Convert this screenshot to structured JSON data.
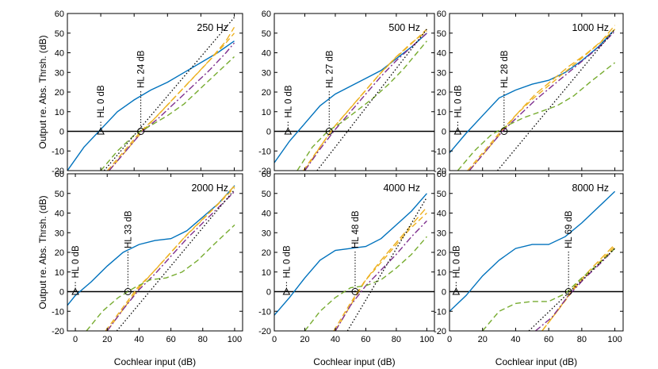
{
  "figure": {
    "ylabel": "Output re. Abs. Thrsh. (dB)",
    "xlabel": "Cochlear input (dB)"
  },
  "colors": {
    "blue": "#0072BD",
    "orange": "#EDB120",
    "purple": "#7E2F8E",
    "green": "#77AC30",
    "black": "#000000"
  },
  "chart_data": [
    {
      "type": "line",
      "title": "250 Hz",
      "xlim": [
        0,
        105
      ],
      "ylim": [
        -20,
        60
      ],
      "xticks": [
        0,
        20,
        40,
        60,
        80,
        100
      ],
      "yticks": [
        -20,
        -10,
        0,
        10,
        20,
        30,
        40,
        50,
        60
      ],
      "xlabel": "",
      "ylabel": "Output re. Abs. Thrsh. (dB)",
      "hl0": {
        "label": "HL 0 dB",
        "x": 20
      },
      "hl": {
        "label": "HL 24 dB",
        "x": 44
      },
      "series": [
        {
          "name": "blue",
          "style": "solid",
          "x": [
            0,
            10,
            20,
            30,
            40,
            50,
            60,
            70,
            80,
            90,
            100
          ],
          "y": [
            -20,
            -8,
            1,
            10,
            16,
            21,
            25,
            30,
            35,
            40,
            46
          ]
        },
        {
          "name": "orange",
          "style": "dash-long",
          "x": [
            25,
            35,
            45,
            55,
            65,
            75,
            85,
            95,
            100
          ],
          "y": [
            -20,
            -10,
            0,
            9,
            18,
            27,
            36,
            46,
            53
          ]
        },
        {
          "name": "red",
          "style": "dash",
          "x": [
            24,
            34,
            44,
            54,
            64,
            74,
            84,
            94,
            100
          ],
          "y": [
            -20,
            -10,
            0,
            8,
            17,
            26,
            35,
            44,
            50
          ]
        },
        {
          "name": "purple",
          "style": "dashdot",
          "x": [
            25,
            35,
            45,
            55,
            65,
            75,
            85,
            95,
            100
          ],
          "y": [
            -20,
            -10,
            0,
            7,
            15,
            23,
            31,
            40,
            45
          ]
        },
        {
          "name": "green",
          "style": "dash",
          "x": [
            20,
            30,
            40,
            50,
            60,
            70,
            80,
            90,
            100
          ],
          "y": [
            -20,
            -10,
            -2,
            3,
            8,
            14,
            22,
            30,
            38
          ]
        },
        {
          "name": "reference",
          "style": "dotted",
          "x": [
            22,
            100
          ],
          "y": [
            -20,
            58
          ]
        }
      ]
    },
    {
      "type": "line",
      "title": "500 Hz",
      "xlim": [
        0,
        105
      ],
      "ylim": [
        -20,
        60
      ],
      "xticks": [
        0,
        20,
        40,
        60,
        80,
        100
      ],
      "yticks": [
        -20,
        -10,
        0,
        10,
        20,
        30,
        40,
        50,
        60
      ],
      "xlabel": "",
      "ylabel": "",
      "hl0": {
        "label": "HL 0 dB",
        "x": 9
      },
      "hl": {
        "label": "HL 27 dB",
        "x": 36
      },
      "series": [
        {
          "name": "blue",
          "style": "solid",
          "x": [
            0,
            10,
            20,
            30,
            40,
            50,
            60,
            70,
            80,
            90,
            100
          ],
          "y": [
            -16,
            -5,
            4,
            13,
            19,
            23,
            27,
            31,
            37,
            43,
            50
          ]
        },
        {
          "name": "orange",
          "style": "dash-long",
          "x": [
            20,
            30,
            40,
            50,
            60,
            70,
            80,
            90,
            100
          ],
          "y": [
            -20,
            -8,
            3,
            12,
            21,
            30,
            38,
            45,
            51
          ]
        },
        {
          "name": "red",
          "style": "dash",
          "x": [
            19,
            29,
            39,
            49,
            59,
            69,
            79,
            89,
            100
          ],
          "y": [
            -20,
            -9,
            2,
            11,
            20,
            29,
            37,
            44,
            52
          ]
        },
        {
          "name": "purple",
          "style": "dashdot",
          "x": [
            20,
            30,
            40,
            50,
            60,
            70,
            80,
            90,
            100
          ],
          "y": [
            -20,
            -9,
            1,
            10,
            19,
            28,
            36,
            43,
            50
          ]
        },
        {
          "name": "green",
          "style": "dash",
          "x": [
            15,
            25,
            35,
            45,
            55,
            65,
            75,
            85,
            100
          ],
          "y": [
            -20,
            -8,
            0,
            5,
            11,
            17,
            24,
            32,
            46
          ]
        },
        {
          "name": "reference",
          "style": "dotted",
          "x": [
            28,
            100
          ],
          "y": [
            -20,
            52
          ]
        }
      ]
    },
    {
      "type": "line",
      "title": "1000 Hz",
      "xlim": [
        0,
        105
      ],
      "ylim": [
        -20,
        60
      ],
      "xticks": [
        0,
        20,
        40,
        60,
        80,
        100
      ],
      "yticks": [
        -20,
        -10,
        0,
        10,
        20,
        30,
        40,
        50,
        60
      ],
      "xlabel": "",
      "ylabel": "",
      "hl0": {
        "label": "HL 0 dB",
        "x": 5
      },
      "hl": {
        "label": "HL 28 dB",
        "x": 33
      },
      "series": [
        {
          "name": "blue",
          "style": "solid",
          "x": [
            0,
            10,
            20,
            30,
            40,
            50,
            60,
            70,
            80,
            90,
            100
          ],
          "y": [
            -11,
            -1,
            8,
            17,
            21,
            24,
            26,
            30,
            36,
            43,
            52
          ]
        },
        {
          "name": "orange",
          "style": "dash-long",
          "x": [
            12,
            22,
            32,
            42,
            52,
            62,
            72,
            82,
            92,
            100
          ],
          "y": [
            -20,
            -10,
            0,
            10,
            19,
            26,
            33,
            39,
            46,
            54
          ]
        },
        {
          "name": "red",
          "style": "dash",
          "x": [
            11,
            21,
            31,
            41,
            51,
            61,
            71,
            81,
            91,
            100
          ],
          "y": [
            -20,
            -10,
            0,
            9,
            17,
            24,
            31,
            38,
            45,
            52
          ]
        },
        {
          "name": "purple",
          "style": "dashdot",
          "x": [
            12,
            22,
            32,
            42,
            52,
            62,
            72,
            82,
            92,
            100
          ],
          "y": [
            -20,
            -10,
            0,
            8,
            16,
            23,
            30,
            37,
            44,
            51
          ]
        },
        {
          "name": "green",
          "style": "dash",
          "x": [
            5,
            15,
            25,
            35,
            45,
            55,
            65,
            75,
            85,
            100
          ],
          "y": [
            -20,
            -10,
            -2,
            3,
            7,
            10,
            13,
            18,
            25,
            35
          ]
        },
        {
          "name": "reference",
          "style": "dotted",
          "x": [
            29,
            100
          ],
          "y": [
            -20,
            52
          ]
        }
      ]
    },
    {
      "type": "line",
      "title": "2000 Hz",
      "xlim": [
        -5,
        105
      ],
      "ylim": [
        -20,
        60
      ],
      "xticks": [
        0,
        20,
        40,
        60,
        80,
        100
      ],
      "yticks": [
        -20,
        -10,
        0,
        10,
        20,
        30,
        40,
        50,
        60
      ],
      "xlabel": "Cochlear input (dB)",
      "ylabel": "Output re. Abs. Thrsh. (dB)",
      "hl0": {
        "label": "HL 0 dB",
        "x": 0
      },
      "hl": {
        "label": "HL 33 dB",
        "x": 33
      },
      "series": [
        {
          "name": "blue",
          "style": "solid",
          "x": [
            -5,
            0,
            10,
            20,
            30,
            40,
            50,
            60,
            70,
            80,
            90,
            100
          ],
          "y": [
            -7,
            -2,
            5,
            13,
            20,
            24,
            26,
            27,
            31,
            38,
            45,
            54
          ]
        },
        {
          "name": "orange",
          "style": "dash-long",
          "x": [
            20,
            30,
            40,
            50,
            60,
            70,
            80,
            90,
            100
          ],
          "y": [
            -20,
            -9,
            2,
            11,
            20,
            29,
            37,
            45,
            54
          ]
        },
        {
          "name": "red",
          "style": "dash",
          "x": [
            19,
            29,
            39,
            49,
            59,
            69,
            79,
            89,
            100
          ],
          "y": [
            -20,
            -9,
            2,
            10,
            19,
            28,
            36,
            44,
            53
          ]
        },
        {
          "name": "purple",
          "style": "dashdot",
          "x": [
            20,
            30,
            40,
            50,
            60,
            70,
            80,
            90,
            100
          ],
          "y": [
            -20,
            -9,
            1,
            9,
            18,
            27,
            35,
            43,
            51
          ]
        },
        {
          "name": "green",
          "style": "dash",
          "x": [
            7,
            17,
            27,
            37,
            47,
            57,
            67,
            77,
            87,
            100
          ],
          "y": [
            -20,
            -10,
            -3,
            2,
            6,
            7,
            10,
            16,
            24,
            34
          ]
        },
        {
          "name": "reference",
          "style": "dotted",
          "x": [
            26,
            100
          ],
          "y": [
            -20,
            52
          ]
        }
      ]
    },
    {
      "type": "line",
      "title": "4000 Hz",
      "xlim": [
        0,
        105
      ],
      "ylim": [
        -20,
        60
      ],
      "xticks": [
        0,
        20,
        40,
        60,
        80,
        100
      ],
      "yticks": [
        -20,
        -10,
        0,
        10,
        20,
        30,
        40,
        50,
        60
      ],
      "xlabel": "Cochlear input (dB)",
      "ylabel": "",
      "hl0": {
        "label": "HL 0 dB",
        "x": 8
      },
      "hl": {
        "label": "HL 48 dB",
        "x": 53
      },
      "series": [
        {
          "name": "blue",
          "style": "solid",
          "x": [
            0,
            10,
            20,
            30,
            40,
            50,
            60,
            70,
            80,
            90,
            100
          ],
          "y": [
            -12,
            -3,
            7,
            16,
            21,
            22,
            23,
            27,
            34,
            41,
            50
          ]
        },
        {
          "name": "orange",
          "style": "dash-long",
          "x": [
            40,
            50,
            60,
            70,
            80,
            90,
            100
          ],
          "y": [
            -20,
            -7,
            6,
            16,
            25,
            34,
            43
          ]
        },
        {
          "name": "red",
          "style": "dash",
          "x": [
            39,
            49,
            59,
            69,
            79,
            89,
            100
          ],
          "y": [
            -20,
            -7,
            5,
            14,
            23,
            32,
            40
          ]
        },
        {
          "name": "purple",
          "style": "dashdot",
          "x": [
            40,
            50,
            60,
            70,
            80,
            90,
            100
          ],
          "y": [
            -20,
            -7,
            3,
            11,
            19,
            28,
            36
          ]
        },
        {
          "name": "green",
          "style": "dash",
          "x": [
            20,
            30,
            40,
            50,
            60,
            70,
            80,
            90,
            100
          ],
          "y": [
            -20,
            -10,
            -3,
            2,
            3,
            6,
            12,
            19,
            28
          ]
        },
        {
          "name": "reference",
          "style": "dotted",
          "x": [
            48,
            100
          ],
          "y": [
            -20,
            48
          ]
        }
      ]
    },
    {
      "type": "line",
      "title": "8000 Hz",
      "xlim": [
        0,
        105
      ],
      "ylim": [
        -20,
        60
      ],
      "xticks": [
        0,
        20,
        40,
        60,
        80,
        100
      ],
      "yticks": [
        -20,
        -10,
        0,
        10,
        20,
        30,
        40,
        50,
        60
      ],
      "xlabel": "Cochlear input (dB)",
      "ylabel": "",
      "hl0": {
        "label": "HL 0 dB",
        "x": 4
      },
      "hl": {
        "label": "HL 69 dB",
        "x": 72
      },
      "series": [
        {
          "name": "blue",
          "style": "solid",
          "x": [
            0,
            10,
            20,
            30,
            40,
            50,
            60,
            70,
            80,
            90,
            100
          ],
          "y": [
            -10,
            -2,
            8,
            16,
            22,
            24,
            24,
            28,
            35,
            43,
            51
          ]
        },
        {
          "name": "orange",
          "style": "dash-long",
          "x": [
            56,
            66,
            76,
            86,
            100
          ],
          "y": [
            -20,
            -9,
            3,
            12,
            24
          ]
        },
        {
          "name": "red",
          "style": "dash",
          "x": [
            56,
            66,
            76,
            86,
            100
          ],
          "y": [
            -20,
            -9,
            2,
            11,
            23
          ]
        },
        {
          "name": "purple",
          "style": "dashdot",
          "x": [
            52,
            62,
            72,
            82,
            92,
            100
          ],
          "y": [
            -20,
            -13,
            -2,
            7,
            15,
            22
          ]
        },
        {
          "name": "green",
          "style": "dash",
          "x": [
            20,
            30,
            40,
            50,
            60,
            70,
            80,
            90,
            100
          ],
          "y": [
            -20,
            -10,
            -6,
            -5,
            -5,
            -1,
            7,
            14,
            22
          ]
        },
        {
          "name": "reference",
          "style": "dotted",
          "x": [
            48,
            100
          ],
          "y": [
            -20,
            22
          ]
        }
      ]
    }
  ]
}
